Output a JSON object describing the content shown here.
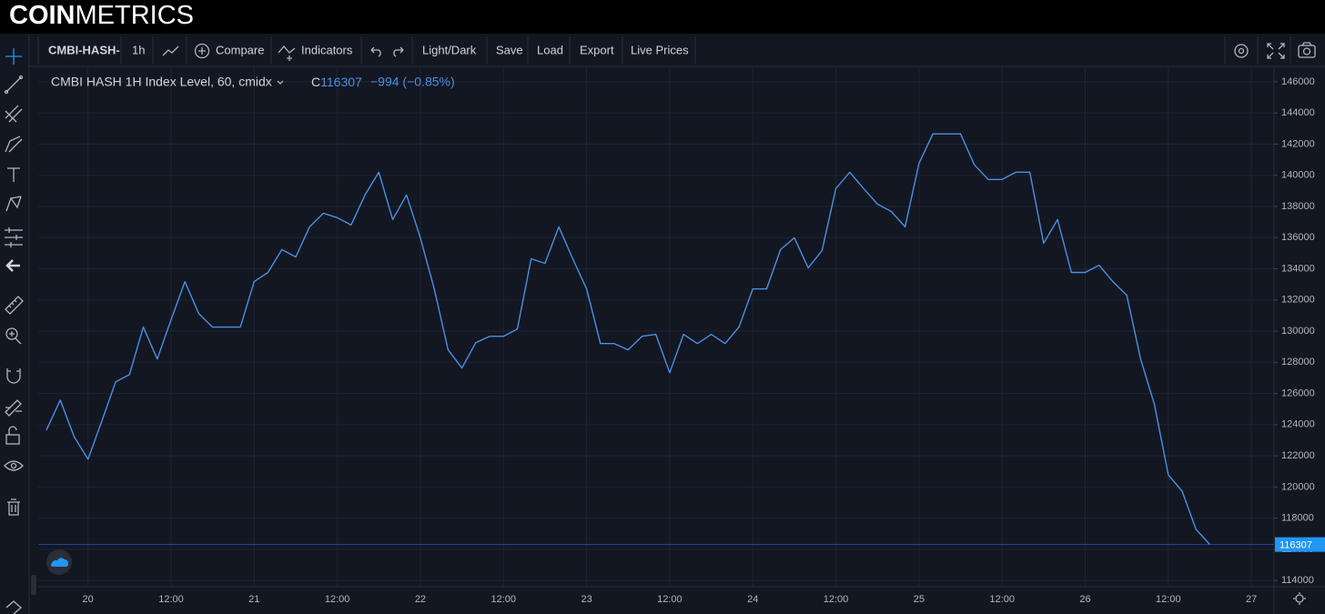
{
  "logo": [
    "COIN",
    "METRICS"
  ],
  "toolbar": {
    "symbol": "CMBI-HASH-",
    "interval": "1h",
    "buttons": [
      "Compare",
      "Indicators",
      "Light/Dark",
      "Save",
      "Load",
      "Export",
      "Live Prices"
    ]
  },
  "chart_data": {
    "type": "line",
    "title": "CMBI HASH 1H Index Level, 60, cmidx",
    "close_prefix": "C",
    "change": "−994 (−0.85%)",
    "color": "#4a90e2",
    "categories": [
      null,
      null,
      null,
      "20",
      null,
      null,
      null,
      null,
      null,
      "12:00",
      null,
      null,
      null,
      null,
      null,
      "21",
      null,
      null,
      null,
      null,
      null,
      "12:00",
      null,
      null,
      null,
      null,
      null,
      "22",
      null,
      null,
      null,
      null,
      null,
      "12:00",
      null,
      null,
      null,
      null,
      null,
      "23",
      null,
      null,
      null,
      null,
      null,
      "12:00",
      null,
      null,
      null,
      null,
      null,
      "24",
      null,
      null,
      null,
      null,
      null,
      "12:00",
      null,
      null,
      null,
      null,
      null,
      "25",
      null,
      null,
      null,
      null,
      null,
      "12:00",
      null,
      null,
      null,
      null,
      null,
      "26",
      null,
      null,
      null,
      null,
      null,
      "12:00",
      null,
      null,
      null,
      null,
      null,
      "27"
    ],
    "values": [
      123650,
      125580,
      123240,
      121780,
      124230,
      126750,
      127220,
      130260,
      128210,
      130730,
      133180,
      131130,
      130260,
      130260,
      130260,
      133180,
      133770,
      135230,
      134760,
      136690,
      137570,
      137280,
      136810,
      138740,
      140200,
      137160,
      138740,
      135990,
      132710,
      128800,
      127630,
      129260,
      129670,
      129670,
      130140,
      134640,
      134350,
      136690,
      134640,
      132710,
      129200,
      129200,
      128800,
      129670,
      129790,
      127330,
      129790,
      129200,
      129790,
      129200,
      130260,
      132710,
      132710,
      135230,
      135990,
      134060,
      135170,
      139150,
      140200,
      139150,
      138150,
      137680,
      136690,
      140780,
      142660,
      142660,
      142660,
      140670,
      139730,
      139730,
      140200,
      140200,
      135640,
      137160,
      133770,
      133770,
      134230,
      133180,
      132300,
      128210,
      125290,
      120780,
      119730,
      117280,
      116307,
      null,
      null,
      null
    ],
    "ylim": [
      113600,
      146930
    ],
    "yticks": [
      114000,
      116000,
      118000,
      120000,
      122000,
      124000,
      126000,
      128000,
      130000,
      132000,
      134000,
      136000,
      138000,
      140000,
      142000,
      144000,
      146000
    ],
    "grid": true
  }
}
